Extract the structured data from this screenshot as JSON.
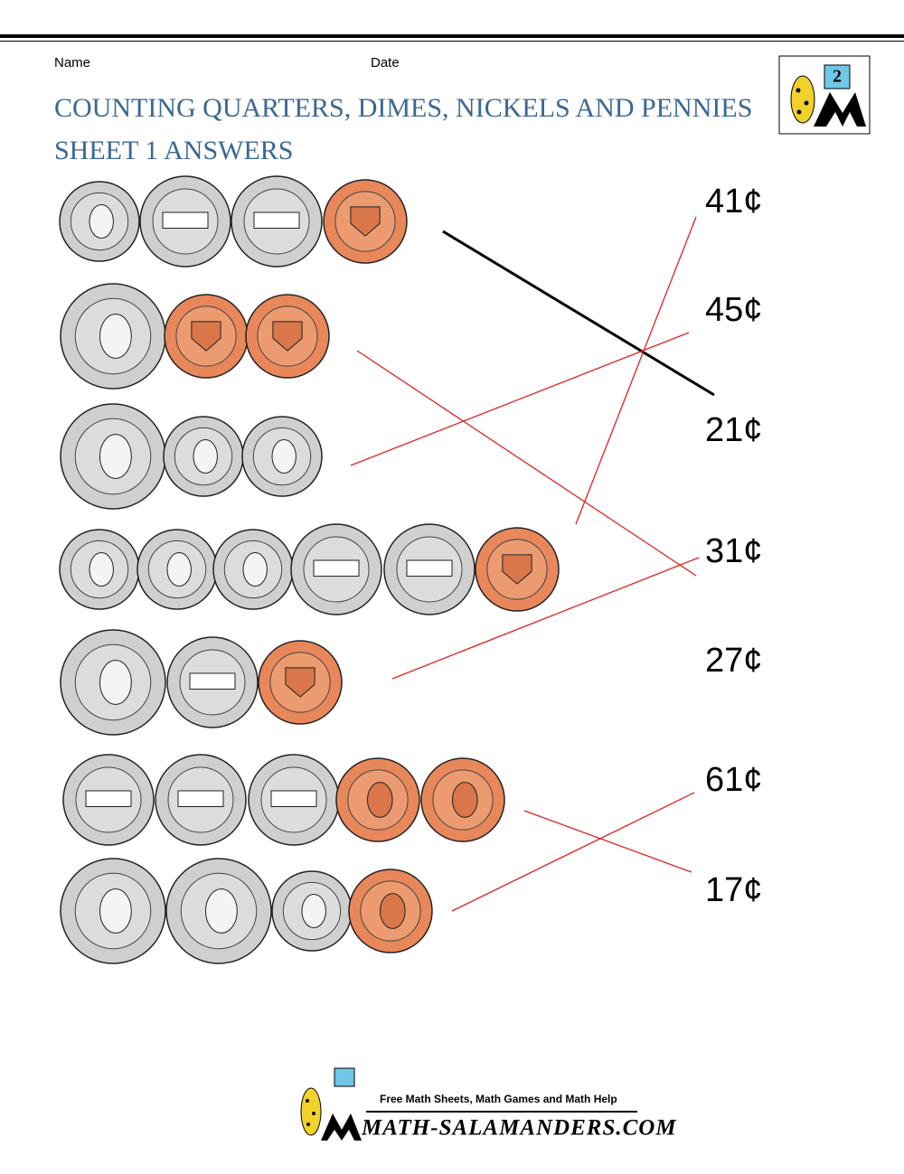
{
  "header": {
    "name_label": "Name",
    "date_label": "Date",
    "logo_grade": "2"
  },
  "title": {
    "line1": "COUNTING QUARTERS, DIMES, NICKELS AND PENNIES",
    "line2": "SHEET 1 ANSWERS"
  },
  "answers": [
    "41¢",
    "45¢",
    "21¢",
    "31¢",
    "27¢",
    "61¢",
    "17¢"
  ],
  "footer": {
    "tagline": "Free Math Sheets, Math Games and Math Help",
    "site": "MATH-SALAMANDERS.COM"
  }
}
